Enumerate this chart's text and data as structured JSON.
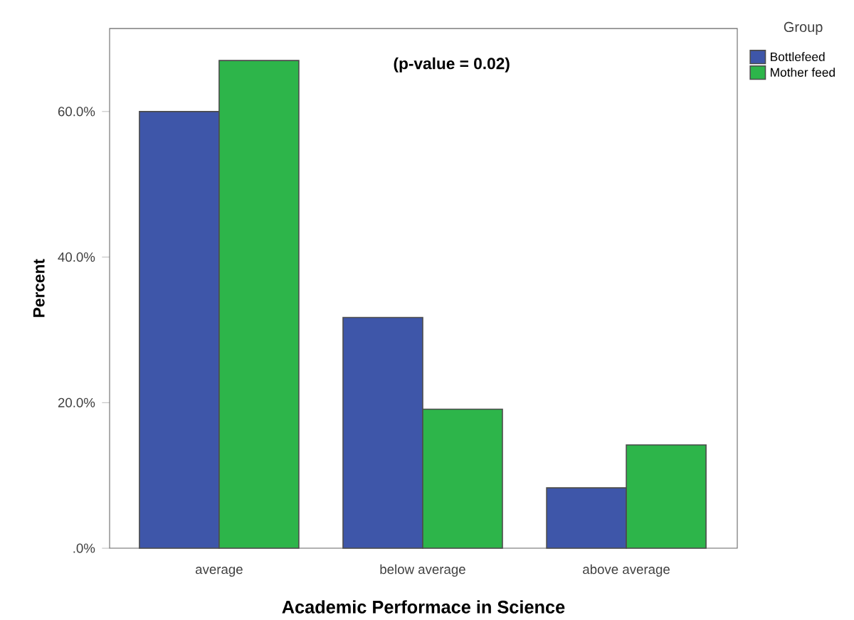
{
  "chart_data": {
    "type": "bar",
    "xlabel": "Academic Performace in Science",
    "ylabel": "Percent",
    "legend_title": "Group",
    "annotations": [
      "(p-value = 0.02)"
    ],
    "categories": [
      "average",
      "below average",
      "above average"
    ],
    "series": [
      {
        "name": "Bottlefeed",
        "color": "#3e56a9",
        "values": [
          60.0,
          31.7,
          8.3
        ]
      },
      {
        "name": "Mother feed",
        "color": "#2db54a",
        "values": [
          67.0,
          19.1,
          14.2
        ]
      }
    ],
    "ylim": [
      0,
      71.4
    ],
    "yticks": [
      {
        "value": 0,
        "label": ".0%"
      },
      {
        "value": 20,
        "label": "20.0%"
      },
      {
        "value": 40,
        "label": "40.0%"
      },
      {
        "value": 60,
        "label": "60.0%"
      }
    ],
    "legend": "top right"
  }
}
